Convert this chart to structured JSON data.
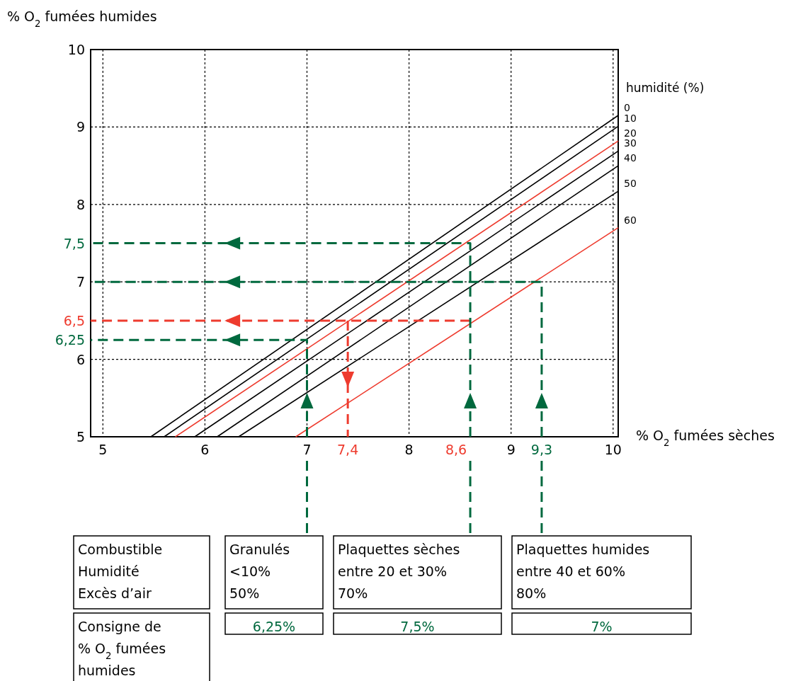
{
  "chart_data": {
    "type": "line",
    "xlabel": "% O$_{2}$ fumées sèches",
    "ylabel": "% O$_{2}$ fumées humides",
    "legend_title": "humidité (%)",
    "xlim": [
      4.88,
      10.05
    ],
    "ylim": [
      5,
      10
    ],
    "xticks": [
      5,
      6,
      7,
      8,
      9,
      10
    ],
    "yticks": [
      5,
      6,
      7,
      8,
      9,
      10
    ],
    "grid": true,
    "series": [
      {
        "name": "0",
        "color": "#000000",
        "x": [
          5.47,
          10.05
        ],
        "values": [
          5,
          9.15
        ]
      },
      {
        "name": "10",
        "color": "#000000",
        "x": [
          5.6,
          10.05
        ],
        "values": [
          5,
          9.01
        ]
      },
      {
        "name": "20",
        "color": "#ee3b2e",
        "x": [
          5.71,
          10.05
        ],
        "values": [
          5,
          8.82
        ]
      },
      {
        "name": "30",
        "color": "#000000",
        "x": [
          5.9,
          10.05
        ],
        "values": [
          5,
          8.69
        ]
      },
      {
        "name": "40",
        "color": "#000000",
        "x": [
          6.12,
          10.05
        ],
        "values": [
          5,
          8.5
        ]
      },
      {
        "name": "50",
        "color": "#000000",
        "x": [
          6.33,
          10.05
        ],
        "values": [
          5,
          8.17
        ]
      },
      {
        "name": "60",
        "color": "#ee3b2e",
        "x": [
          6.89,
          10.05
        ],
        "values": [
          5,
          7.7
        ]
      },
      {
        "color": "#ee3b2e",
        "line_style": "dashed",
        "x": [
          8.6,
          4.88
        ],
        "values": [
          6.5,
          6.5
        ]
      },
      {
        "color": "#ee3b2e",
        "line_style": "dashed",
        "x": [
          7.4,
          7.4
        ],
        "values": [
          6.5,
          5
        ]
      },
      {
        "color": "#00693e",
        "line_style": "dashed",
        "x": [
          7,
          7,
          4.88
        ],
        "values": [
          5,
          6.25,
          6.25
        ]
      },
      {
        "color": "#00693e",
        "line_style": "dashed",
        "x": [
          8.6,
          8.6,
          4.88
        ],
        "values": [
          5,
          7.5,
          7.5
        ]
      },
      {
        "color": "#00693e",
        "line_style": "dashed",
        "x": [
          9.3,
          9.3,
          4.88
        ],
        "values": [
          5,
          7,
          7
        ]
      }
    ],
    "annotations": [
      {
        "text": "7,5",
        "x": 4.88,
        "y": 7.5
      },
      {
        "text": "6,5",
        "x": 4.88,
        "y": 6.5
      },
      {
        "text": "6,25",
        "x": 4.88,
        "y": 6.25
      },
      {
        "text": "7,4",
        "x": 7.4,
        "y": 5
      },
      {
        "text": "8,6",
        "x": 8.6,
        "y": 5
      },
      {
        "text": "9,3",
        "x": 9.3,
        "y": 5
      },
      "Combustible\nHumidité\nExcès d’air",
      "Granulés\n<10%\n50%",
      "Plaquettes sèches\nentre 20 et 30%\n70%",
      "Plaquettes humides\nentre 40 et 60%\n80%",
      "Consigne de\n% O$_{2}$ fumées\nhumides",
      "6,25%",
      "7,5%",
      "7%"
    ]
  }
}
